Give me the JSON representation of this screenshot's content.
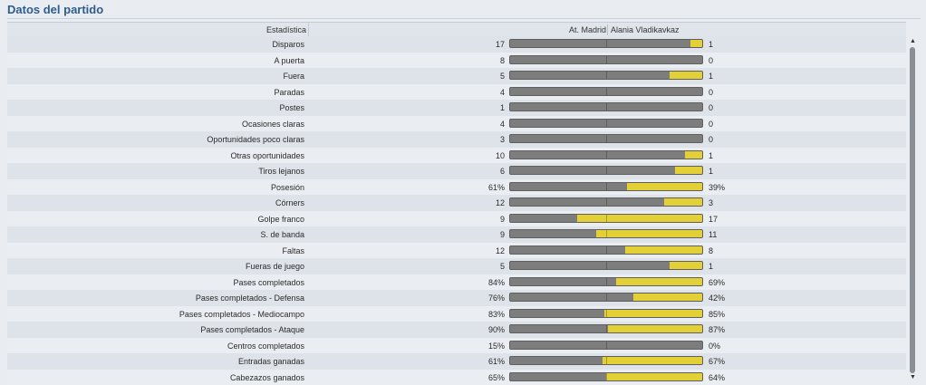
{
  "panel": {
    "title": "Datos del partido"
  },
  "header": {
    "stat": "Estadística",
    "home": "At. Madrid",
    "away": "Alania Vladikavkaz"
  },
  "colors": {
    "home_bar": "#7d7d7d",
    "away_bar": "#e3cf36",
    "title": "#2f5c8c"
  },
  "stats": [
    {
      "label": "Disparos",
      "home": "17",
      "away": "1",
      "away_share": 0.06
    },
    {
      "label": "A puerta",
      "home": "8",
      "away": "0",
      "away_share": 0
    },
    {
      "label": "Fuera",
      "home": "5",
      "away": "1",
      "away_share": 0.17
    },
    {
      "label": "Paradas",
      "home": "4",
      "away": "0",
      "away_share": 0
    },
    {
      "label": "Postes",
      "home": "1",
      "away": "0",
      "away_share": 0
    },
    {
      "label": "Ocasiones claras",
      "home": "4",
      "away": "0",
      "away_share": 0
    },
    {
      "label": "Oportunidades poco claras",
      "home": "3",
      "away": "0",
      "away_share": 0
    },
    {
      "label": "Otras oportunidades",
      "home": "10",
      "away": "1",
      "away_share": 0.09
    },
    {
      "label": "Tiros lejanos",
      "home": "6",
      "away": "1",
      "away_share": 0.14
    },
    {
      "label": "Posesión",
      "home": "61%",
      "away": "39%",
      "away_share": 0.39
    },
    {
      "label": "Córners",
      "home": "12",
      "away": "3",
      "away_share": 0.2
    },
    {
      "label": "Golpe franco",
      "home": "9",
      "away": "17",
      "away_share": 0.65
    },
    {
      "label": "S. de banda",
      "home": "9",
      "away": "11",
      "away_share": 0.55
    },
    {
      "label": "Faltas",
      "home": "12",
      "away": "8",
      "away_share": 0.4
    },
    {
      "label": "Fueras de juego",
      "home": "5",
      "away": "1",
      "away_share": 0.17
    },
    {
      "label": "Pases completados",
      "home": "84%",
      "away": "69%",
      "away_share": 0.45
    },
    {
      "label": "Pases completados - Defensa",
      "home": "76%",
      "away": "42%",
      "away_share": 0.36
    },
    {
      "label": "Pases completados - Mediocampo",
      "home": "83%",
      "away": "85%",
      "away_share": 0.51
    },
    {
      "label": "Pases completados - Ataque",
      "home": "90%",
      "away": "87%",
      "away_share": 0.49
    },
    {
      "label": "Centros completados",
      "home": "15%",
      "away": "0%",
      "away_share": 0
    },
    {
      "label": "Entradas ganadas",
      "home": "61%",
      "away": "67%",
      "away_share": 0.52
    },
    {
      "label": "Cabezazos ganados",
      "home": "65%",
      "away": "64%",
      "away_share": 0.5
    }
  ]
}
